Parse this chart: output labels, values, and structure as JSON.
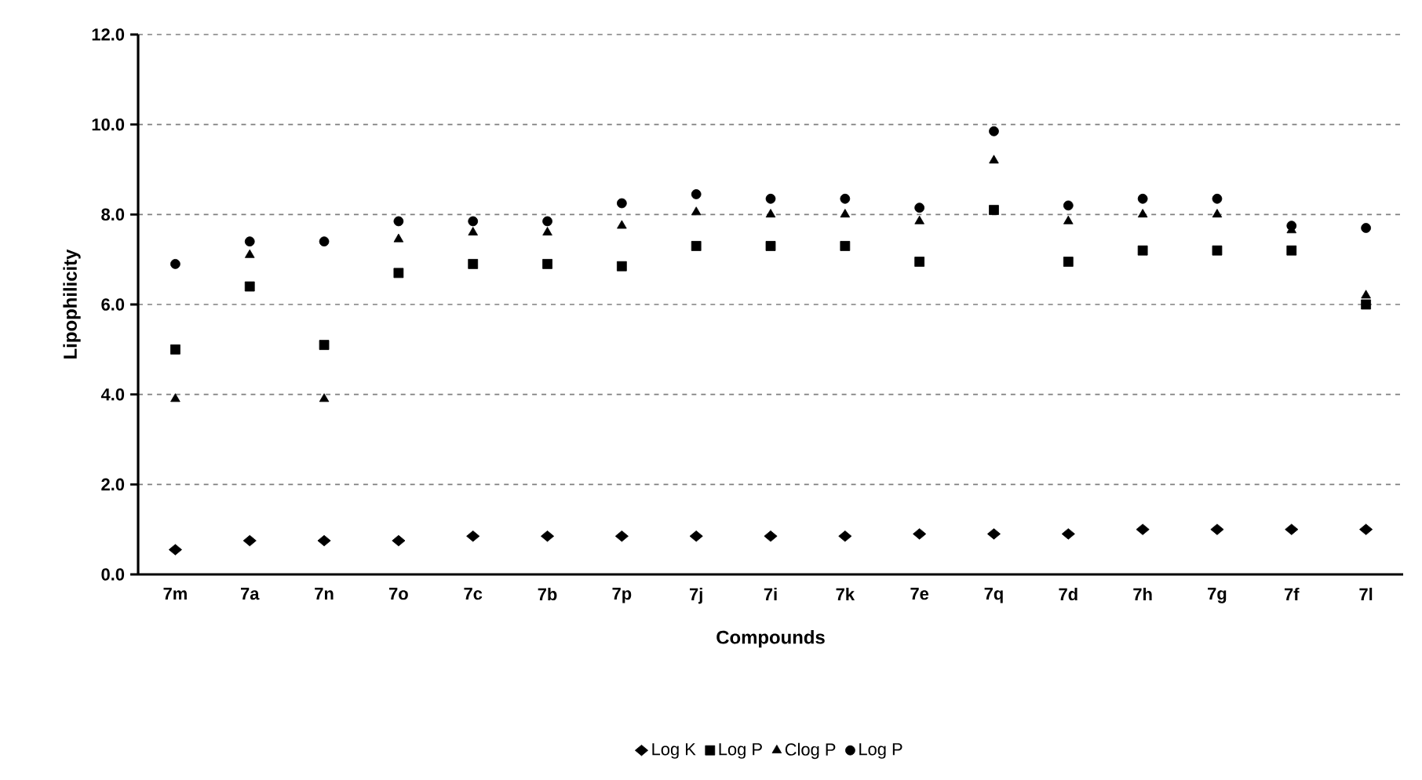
{
  "chart_data": {
    "type": "scatter",
    "xlabel": "Compounds",
    "ylabel": "Lipophilicity",
    "categories": [
      "7m",
      "7a",
      "7n",
      "7o",
      "7c",
      "7b",
      "7p",
      "7j",
      "7i",
      "7k",
      "7e",
      "7q",
      "7d",
      "7h",
      "7g",
      "7f",
      "7l"
    ],
    "series": [
      {
        "name": "Log K",
        "color": "#000000",
        "marker": "diamond",
        "values": [
          0.55,
          0.75,
          0.75,
          0.75,
          0.85,
          0.85,
          0.85,
          0.85,
          0.85,
          0.85,
          0.9,
          0.9,
          0.9,
          1.0,
          1.0,
          1.0,
          1.0
        ]
      },
      {
        "name": "Log P",
        "color": "#000000",
        "marker": "square",
        "values": [
          5.0,
          6.4,
          5.1,
          6.7,
          6.9,
          6.9,
          6.85,
          7.3,
          7.3,
          7.3,
          6.95,
          8.1,
          6.95,
          7.2,
          7.2,
          7.2,
          6.0
        ]
      },
      {
        "name": "Clog P",
        "color": "#000000",
        "marker": "triangle",
        "values": [
          3.9,
          7.1,
          3.9,
          7.45,
          7.6,
          7.6,
          7.75,
          8.05,
          8.0,
          8.0,
          7.85,
          9.2,
          7.85,
          8.0,
          8.0,
          7.65,
          6.2
        ]
      },
      {
        "name": "Log P",
        "color": "#000000",
        "marker": "circle",
        "values": [
          6.9,
          7.4,
          7.4,
          7.85,
          7.85,
          7.85,
          8.25,
          8.45,
          8.35,
          8.35,
          8.15,
          9.85,
          8.2,
          8.35,
          8.35,
          7.75,
          7.7
        ]
      }
    ],
    "ylim": [
      0,
      12
    ],
    "yticks": [
      {
        "value": 0,
        "label": "0.0"
      },
      {
        "value": 2,
        "label": "2.0"
      },
      {
        "value": 4,
        "label": "4.0"
      },
      {
        "value": 6,
        "label": "6.0"
      },
      {
        "value": 8,
        "label": "8.0"
      },
      {
        "value": 10,
        "label": "10.0"
      },
      {
        "value": 12,
        "label": "12.0"
      }
    ],
    "grid": "y",
    "legend": "bottom"
  }
}
